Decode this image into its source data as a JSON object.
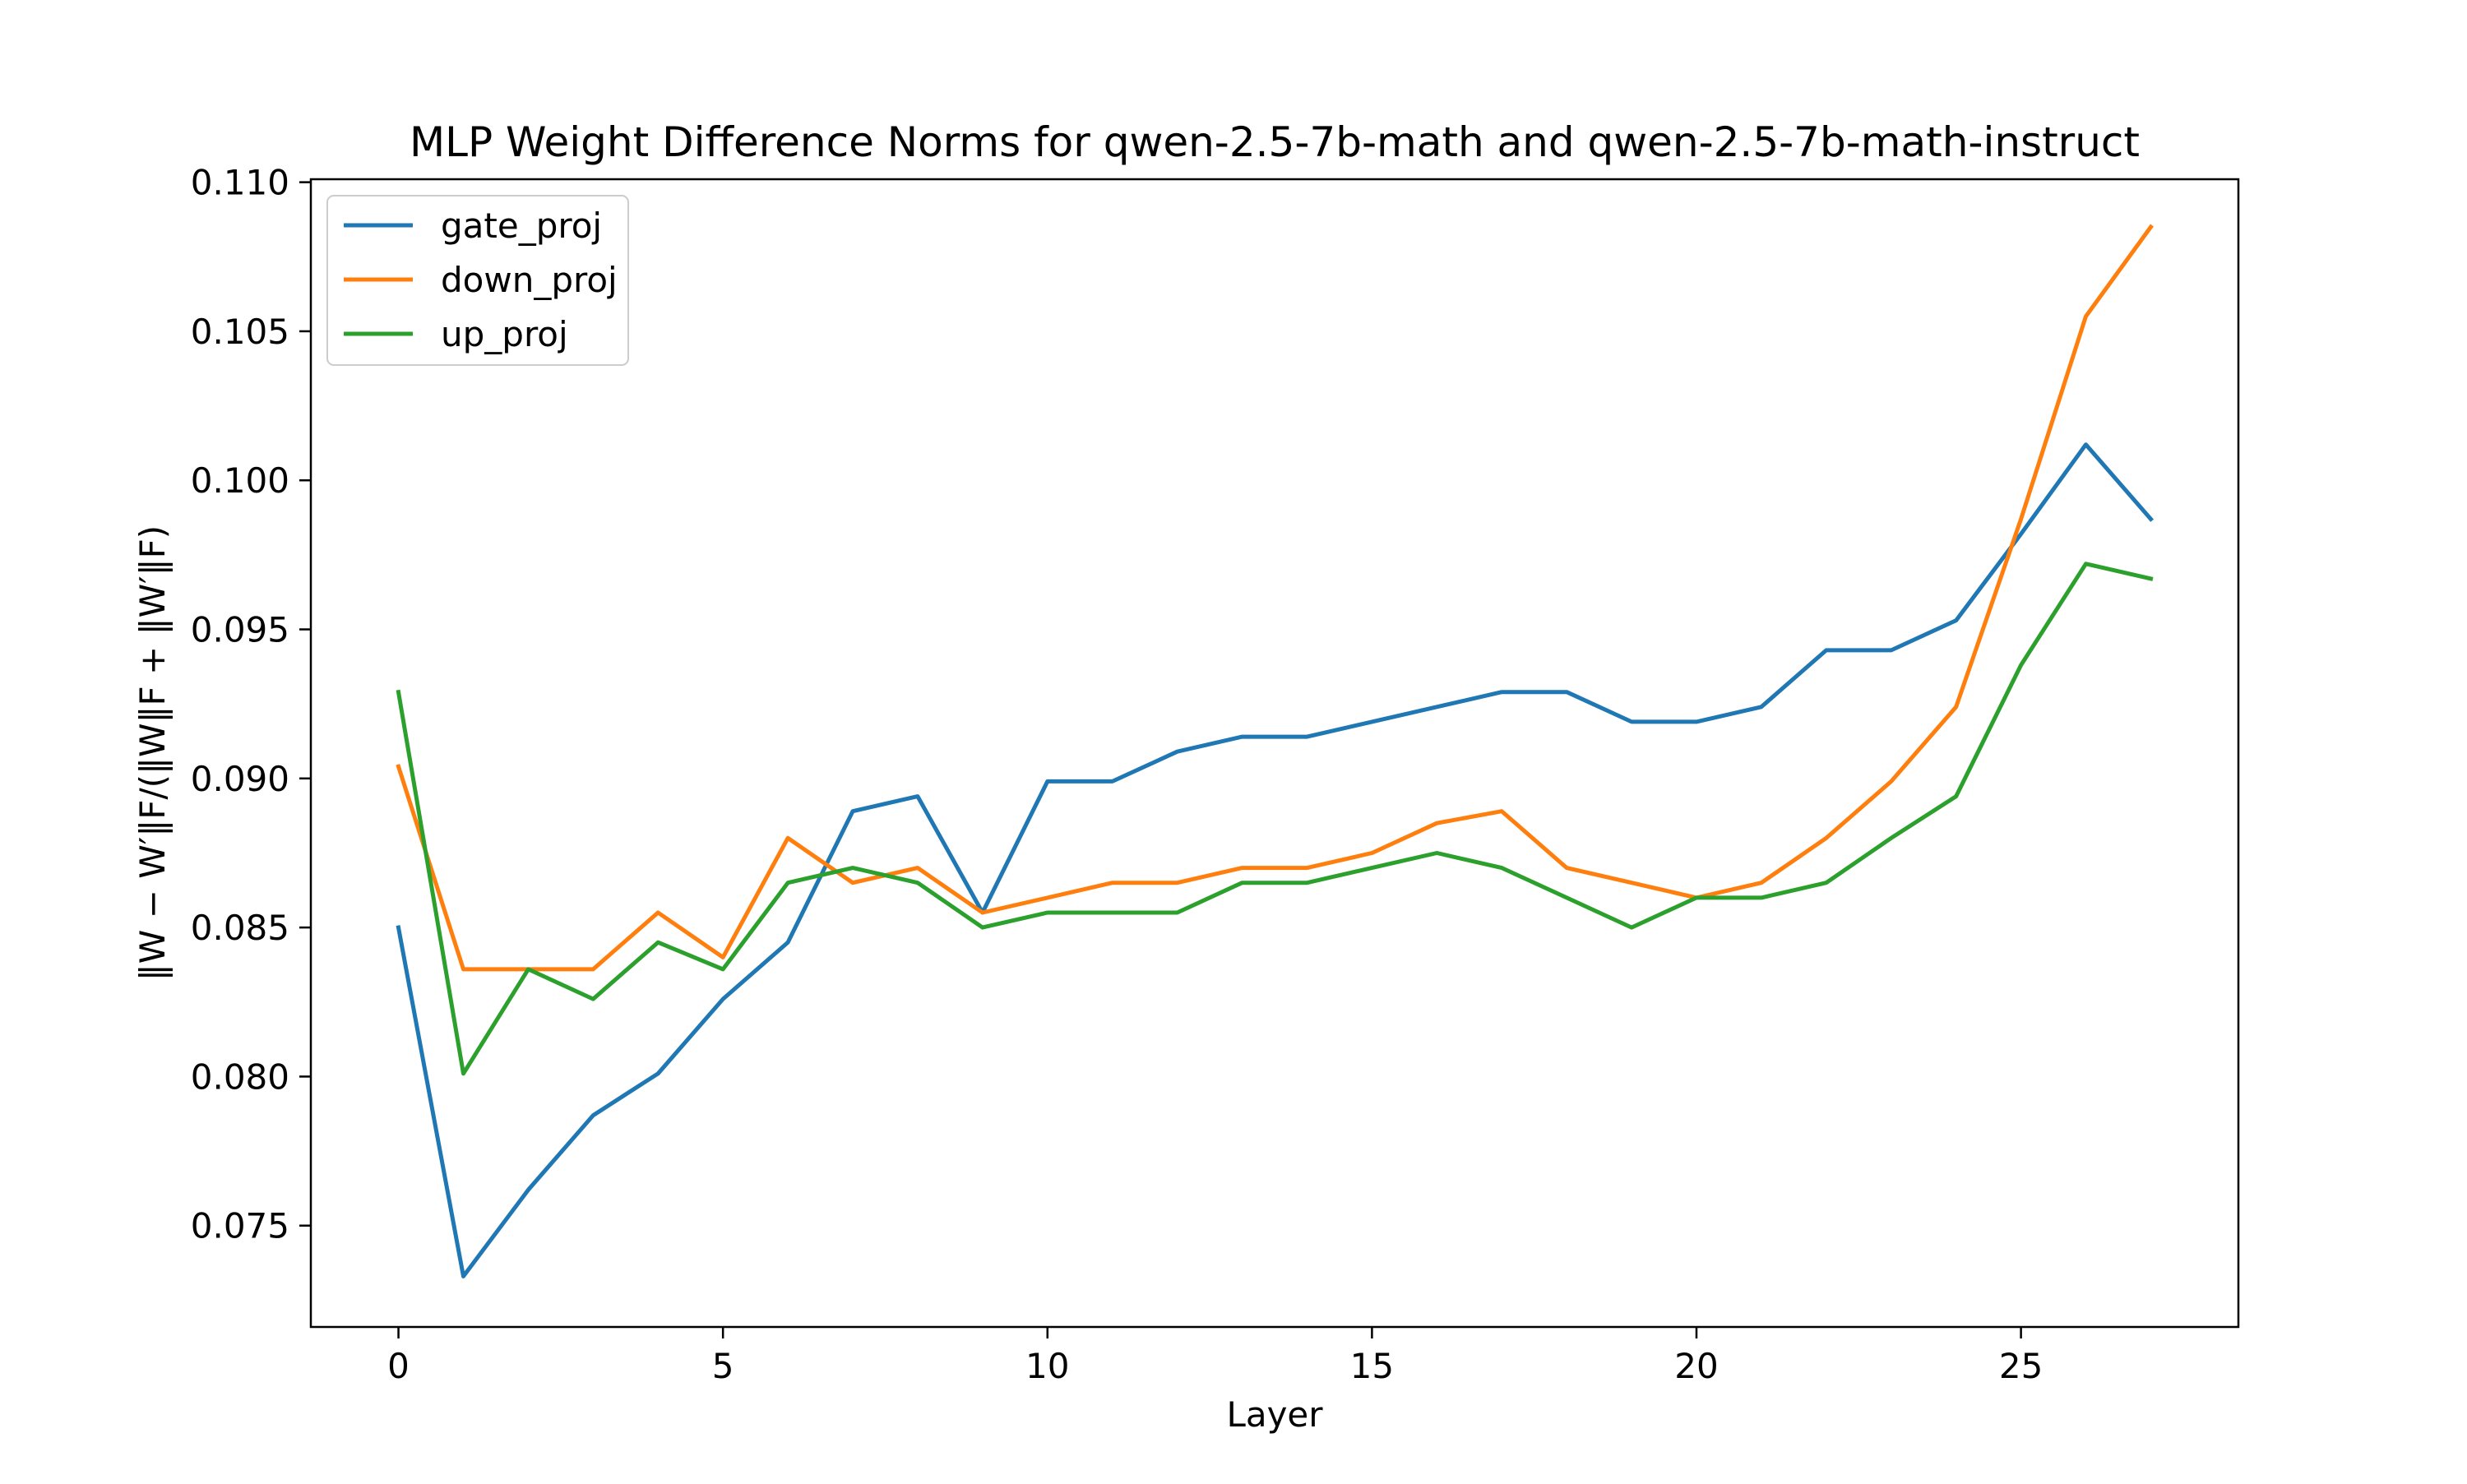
{
  "chart_data": {
    "type": "line",
    "title": "MLP Weight Difference Norms for qwen-2.5-7b-math and qwen-2.5-7b-math-instruct",
    "xlabel": "Layer",
    "ylabel": "‖W − W′‖F/(‖W‖F + ‖W′‖F)",
    "xlim": [
      -1.35,
      28.35
    ],
    "ylim": [
      0.0716,
      0.1101
    ],
    "xticks": [
      "0",
      "5",
      "10",
      "15",
      "20",
      "25"
    ],
    "yticks": [
      "0.075",
      "0.080",
      "0.085",
      "0.090",
      "0.095",
      "0.100",
      "0.105",
      "0.110"
    ],
    "grid": false,
    "legend_position": "top-left",
    "x": [
      0,
      1,
      2,
      3,
      4,
      5,
      6,
      7,
      8,
      9,
      10,
      11,
      12,
      13,
      14,
      15,
      16,
      17,
      18,
      19,
      20,
      21,
      22,
      23,
      24,
      25,
      26,
      27
    ],
    "series": [
      {
        "name": "gate_proj",
        "color": "#1f77b4",
        "values": [
          0.085,
          0.0733,
          0.0762,
          0.0787,
          0.0801,
          0.0826,
          0.0845,
          0.0889,
          0.0894,
          0.0855,
          0.0899,
          0.0899,
          0.0909,
          0.0914,
          0.0914,
          0.0919,
          0.0924,
          0.0929,
          0.0929,
          0.0919,
          0.0919,
          0.0924,
          0.0943,
          0.0943,
          0.0953,
          0.0982,
          0.1012,
          0.0987
        ]
      },
      {
        "name": "down_proj",
        "color": "#ff7f0e",
        "values": [
          0.0904,
          0.0836,
          0.0836,
          0.0836,
          0.0855,
          0.084,
          0.088,
          0.0865,
          0.087,
          0.0855,
          0.086,
          0.0865,
          0.0865,
          0.087,
          0.087,
          0.0875,
          0.0885,
          0.0889,
          0.087,
          0.0865,
          0.086,
          0.0865,
          0.088,
          0.0899,
          0.0924,
          0.0987,
          0.1055,
          0.1085
        ]
      },
      {
        "name": "up_proj",
        "color": "#2ca02c",
        "values": [
          0.0929,
          0.0801,
          0.0836,
          0.0826,
          0.0845,
          0.0836,
          0.0865,
          0.087,
          0.0865,
          0.085,
          0.0855,
          0.0855,
          0.0855,
          0.0865,
          0.0865,
          0.087,
          0.0875,
          0.087,
          0.086,
          0.085,
          0.086,
          0.086,
          0.0865,
          0.088,
          0.0894,
          0.0938,
          0.0972,
          0.0967
        ]
      }
    ]
  }
}
